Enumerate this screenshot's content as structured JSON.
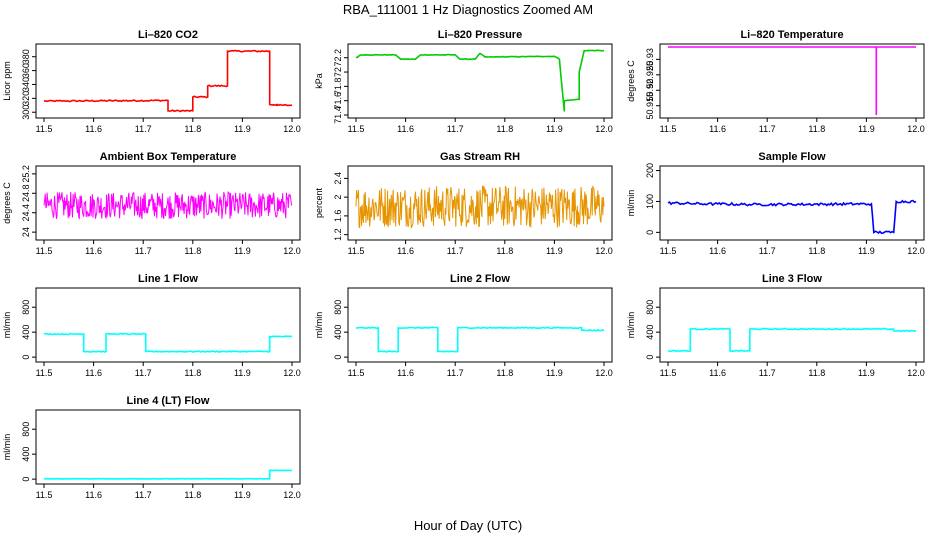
{
  "page": {
    "title": "RBA_111001  1 Hz Diagnostics Zoomed AM",
    "x_title": "Hour of Day (UTC)"
  },
  "chart_data": [
    {
      "id": "co2",
      "type": "line",
      "title": "Li–820 CO2",
      "ylabel": "Licor ppm",
      "color": "#ff0000",
      "noise": 1,
      "xlim": [
        11.5,
        12.0
      ],
      "xticks": [
        "11.5",
        "11.6",
        "11.7",
        "11.8",
        "11.9",
        "12.0"
      ],
      "ylim": [
        296,
        394
      ],
      "yticks": [
        300,
        320,
        340,
        360,
        380
      ],
      "x": [
        11.5,
        11.75,
        11.75,
        11.8,
        11.8,
        11.83,
        11.83,
        11.87,
        11.87,
        11.955,
        11.955,
        11.97,
        11.97,
        12.0
      ],
      "y": [
        316,
        317,
        302,
        302,
        322,
        322,
        338,
        338,
        388,
        388,
        311,
        311,
        310,
        310
      ]
    },
    {
      "id": "pressure",
      "type": "line",
      "title": "Li–820 Pressure",
      "ylabel": "kPa",
      "color": "#00cc00",
      "noise": 0.004,
      "xlim": [
        11.5,
        12.0
      ],
      "xticks": [
        "11.5",
        "11.6",
        "11.7",
        "11.8",
        "11.9",
        "12.0"
      ],
      "ylim": [
        71.4,
        72.35
      ],
      "yticks": [
        71.4,
        71.6,
        71.8,
        72.0,
        72.2
      ],
      "x": [
        11.5,
        11.51,
        11.58,
        11.59,
        11.62,
        11.63,
        11.7,
        11.71,
        11.74,
        11.75,
        11.76,
        11.9,
        11.91,
        11.92,
        11.92,
        11.95,
        11.95,
        11.96,
        11.97,
        12.0
      ],
      "y": [
        72.2,
        72.24,
        72.24,
        72.18,
        72.18,
        72.24,
        72.24,
        72.18,
        72.18,
        72.26,
        72.21,
        72.22,
        72.18,
        71.45,
        71.6,
        71.62,
        72.0,
        72.3,
        72.3,
        72.3
      ]
    },
    {
      "id": "licor-temp",
      "type": "line",
      "title": "Li–820 Temperature",
      "ylabel": "degrees C",
      "color": "#ff00ff",
      "noise": 0,
      "xlim": [
        11.5,
        12.0
      ],
      "xticks": [
        "11.5",
        "11.6",
        "11.7",
        "11.8",
        "11.9",
        "12.0"
      ],
      "ylim": [
        50.912,
        50.934
      ],
      "yticks": [
        50.915,
        50.92,
        50.925,
        50.93
      ],
      "x": [
        11.5,
        11.92,
        11.92,
        11.92,
        12.0
      ],
      "y": [
        50.934,
        50.934,
        50.912,
        50.934,
        50.934
      ]
    },
    {
      "id": "ambient-temp",
      "type": "line",
      "title": "Ambient Box Temperature",
      "ylabel": "degrees C",
      "color": "#ff00ff",
      "noise": 0.28,
      "noise_density": 400,
      "xlim": [
        11.5,
        12.0
      ],
      "xticks": [
        "11.5",
        "11.6",
        "11.7",
        "11.8",
        "11.9",
        "12.0"
      ],
      "ylim": [
        23.9,
        25.3
      ],
      "yticks": [
        24.0,
        24.4,
        24.8,
        25.2
      ],
      "x": [
        11.5,
        12.0
      ],
      "y": [
        24.55,
        24.55
      ]
    },
    {
      "id": "rh",
      "type": "line",
      "title": "Gas Stream RH",
      "ylabel": "percent",
      "color": "#e69500",
      "noise": 0.45,
      "noise_density": 400,
      "xlim": [
        11.5,
        12.0
      ],
      "xticks": [
        "11.5",
        "11.6",
        "11.7",
        "11.8",
        "11.9",
        "12.0"
      ],
      "ylim": [
        1.15,
        2.6
      ],
      "yticks": [
        1.2,
        1.6,
        2.0,
        2.4
      ],
      "x": [
        11.5,
        12.0
      ],
      "y": [
        1.8,
        1.8
      ]
    },
    {
      "id": "sample-flow",
      "type": "line",
      "title": "Sample Flow",
      "ylabel": "ml/min",
      "color": "#0000ff",
      "noise": 4,
      "xlim": [
        11.5,
        12.0
      ],
      "xticks": [
        "11.5",
        "11.6",
        "11.7",
        "11.8",
        "11.9",
        "12.0"
      ],
      "ylim": [
        -15,
        205
      ],
      "yticks": [
        0,
        100,
        200
      ],
      "x": [
        11.5,
        11.58,
        11.6,
        11.67,
        11.68,
        11.91,
        11.915,
        11.955,
        11.96,
        12.0
      ],
      "y": [
        95,
        92,
        92,
        90,
        90,
        92,
        0,
        0,
        100,
        100
      ]
    },
    {
      "id": "line1-flow",
      "type": "line",
      "title": "Line 1 Flow",
      "ylabel": "ml/min",
      "color": "#00ffff",
      "noise": 8,
      "xlim": [
        11.5,
        12.0
      ],
      "xticks": [
        "11.5",
        "11.6",
        "11.7",
        "11.8",
        "11.9",
        "12.0"
      ],
      "ylim": [
        -30,
        1060
      ],
      "yticks": [
        0,
        400,
        800
      ],
      "x": [
        11.5,
        11.58,
        11.58,
        11.625,
        11.625,
        11.705,
        11.705,
        11.955,
        11.955,
        12.0
      ],
      "y": [
        370,
        370,
        90,
        90,
        370,
        370,
        90,
        90,
        330,
        330
      ]
    },
    {
      "id": "line2-flow",
      "type": "line",
      "title": "Line 2 Flow",
      "ylabel": "ml/min",
      "color": "#00ffff",
      "noise": 8,
      "xlim": [
        11.5,
        12.0
      ],
      "xticks": [
        "11.5",
        "11.6",
        "11.7",
        "11.8",
        "11.9",
        "12.0"
      ],
      "ylim": [
        -30,
        1060
      ],
      "yticks": [
        0,
        400,
        800
      ],
      "x": [
        11.5,
        11.545,
        11.545,
        11.585,
        11.585,
        11.665,
        11.665,
        11.705,
        11.705,
        11.955,
        11.955,
        12.0
      ],
      "y": [
        470,
        470,
        90,
        90,
        470,
        470,
        90,
        90,
        470,
        470,
        430,
        430
      ]
    },
    {
      "id": "line3-flow",
      "type": "line",
      "title": "Line 3 Flow",
      "ylabel": "ml/min",
      "color": "#00ffff",
      "noise": 8,
      "xlim": [
        11.5,
        12.0
      ],
      "xticks": [
        "11.5",
        "11.6",
        "11.7",
        "11.8",
        "11.9",
        "12.0"
      ],
      "ylim": [
        -30,
        1060
      ],
      "yticks": [
        0,
        400,
        800
      ],
      "x": [
        11.5,
        11.545,
        11.545,
        11.625,
        11.625,
        11.665,
        11.665,
        11.955,
        11.955,
        12.0
      ],
      "y": [
        100,
        100,
        450,
        450,
        100,
        100,
        450,
        450,
        420,
        420
      ]
    },
    {
      "id": "line4-flow",
      "type": "line",
      "title": "Line 4 (LT) Flow",
      "ylabel": "ml/min",
      "color": "#00ffff",
      "noise": 2,
      "xlim": [
        11.5,
        12.0
      ],
      "xticks": [
        "11.5",
        "11.6",
        "11.7",
        "11.8",
        "11.9",
        "12.0"
      ],
      "ylim": [
        -30,
        1060
      ],
      "yticks": [
        0,
        400,
        800
      ],
      "x": [
        11.5,
        11.955,
        11.955,
        12.0
      ],
      "y": [
        5,
        5,
        140,
        140
      ]
    }
  ]
}
